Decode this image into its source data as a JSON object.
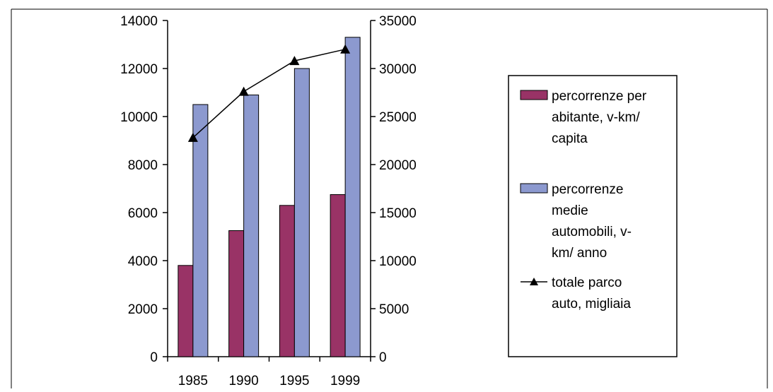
{
  "chart_data": {
    "type": "bar",
    "title": "",
    "xlabel": "",
    "ylabel": "",
    "categories": [
      "1985",
      "1990",
      "1995",
      "1999"
    ],
    "y_left": {
      "ylim": [
        0,
        14000
      ],
      "ticks": [
        "0",
        "2000",
        "4000",
        "6000",
        "8000",
        "10000",
        "12000",
        "14000"
      ]
    },
    "y_right": {
      "ylim": [
        0,
        35000
      ],
      "ticks": [
        "0",
        "5000",
        "10000",
        "15000",
        "20000",
        "25000",
        "30000",
        "35000"
      ]
    },
    "series": [
      {
        "name": "percorrenze per abitante, v-km/ capita",
        "kind": "bar",
        "axis": "left",
        "color": "#993366",
        "values": [
          3800,
          5250,
          6300,
          6750
        ]
      },
      {
        "name": "percorrenze medie automobili, v-km/ anno",
        "kind": "bar",
        "axis": "left",
        "color": "#8c99cf",
        "values": [
          10500,
          10900,
          12000,
          13300
        ]
      },
      {
        "name": "totale parco auto, migliaia",
        "kind": "line",
        "axis": "right",
        "color": "#000000",
        "marker": "triangle",
        "values": [
          22800,
          27600,
          30800,
          32000
        ]
      }
    ],
    "legend": {
      "placement": "right",
      "entries": [
        {
          "lines": [
            "percorrenze per",
            "abitante, v-km/",
            "capita"
          ]
        },
        {
          "lines": [
            "percorrenze",
            "medie",
            "automobili,  v-",
            "km/ anno"
          ]
        },
        {
          "lines": [
            "totale parco",
            "auto, migliaia"
          ]
        }
      ]
    },
    "grid": false
  }
}
